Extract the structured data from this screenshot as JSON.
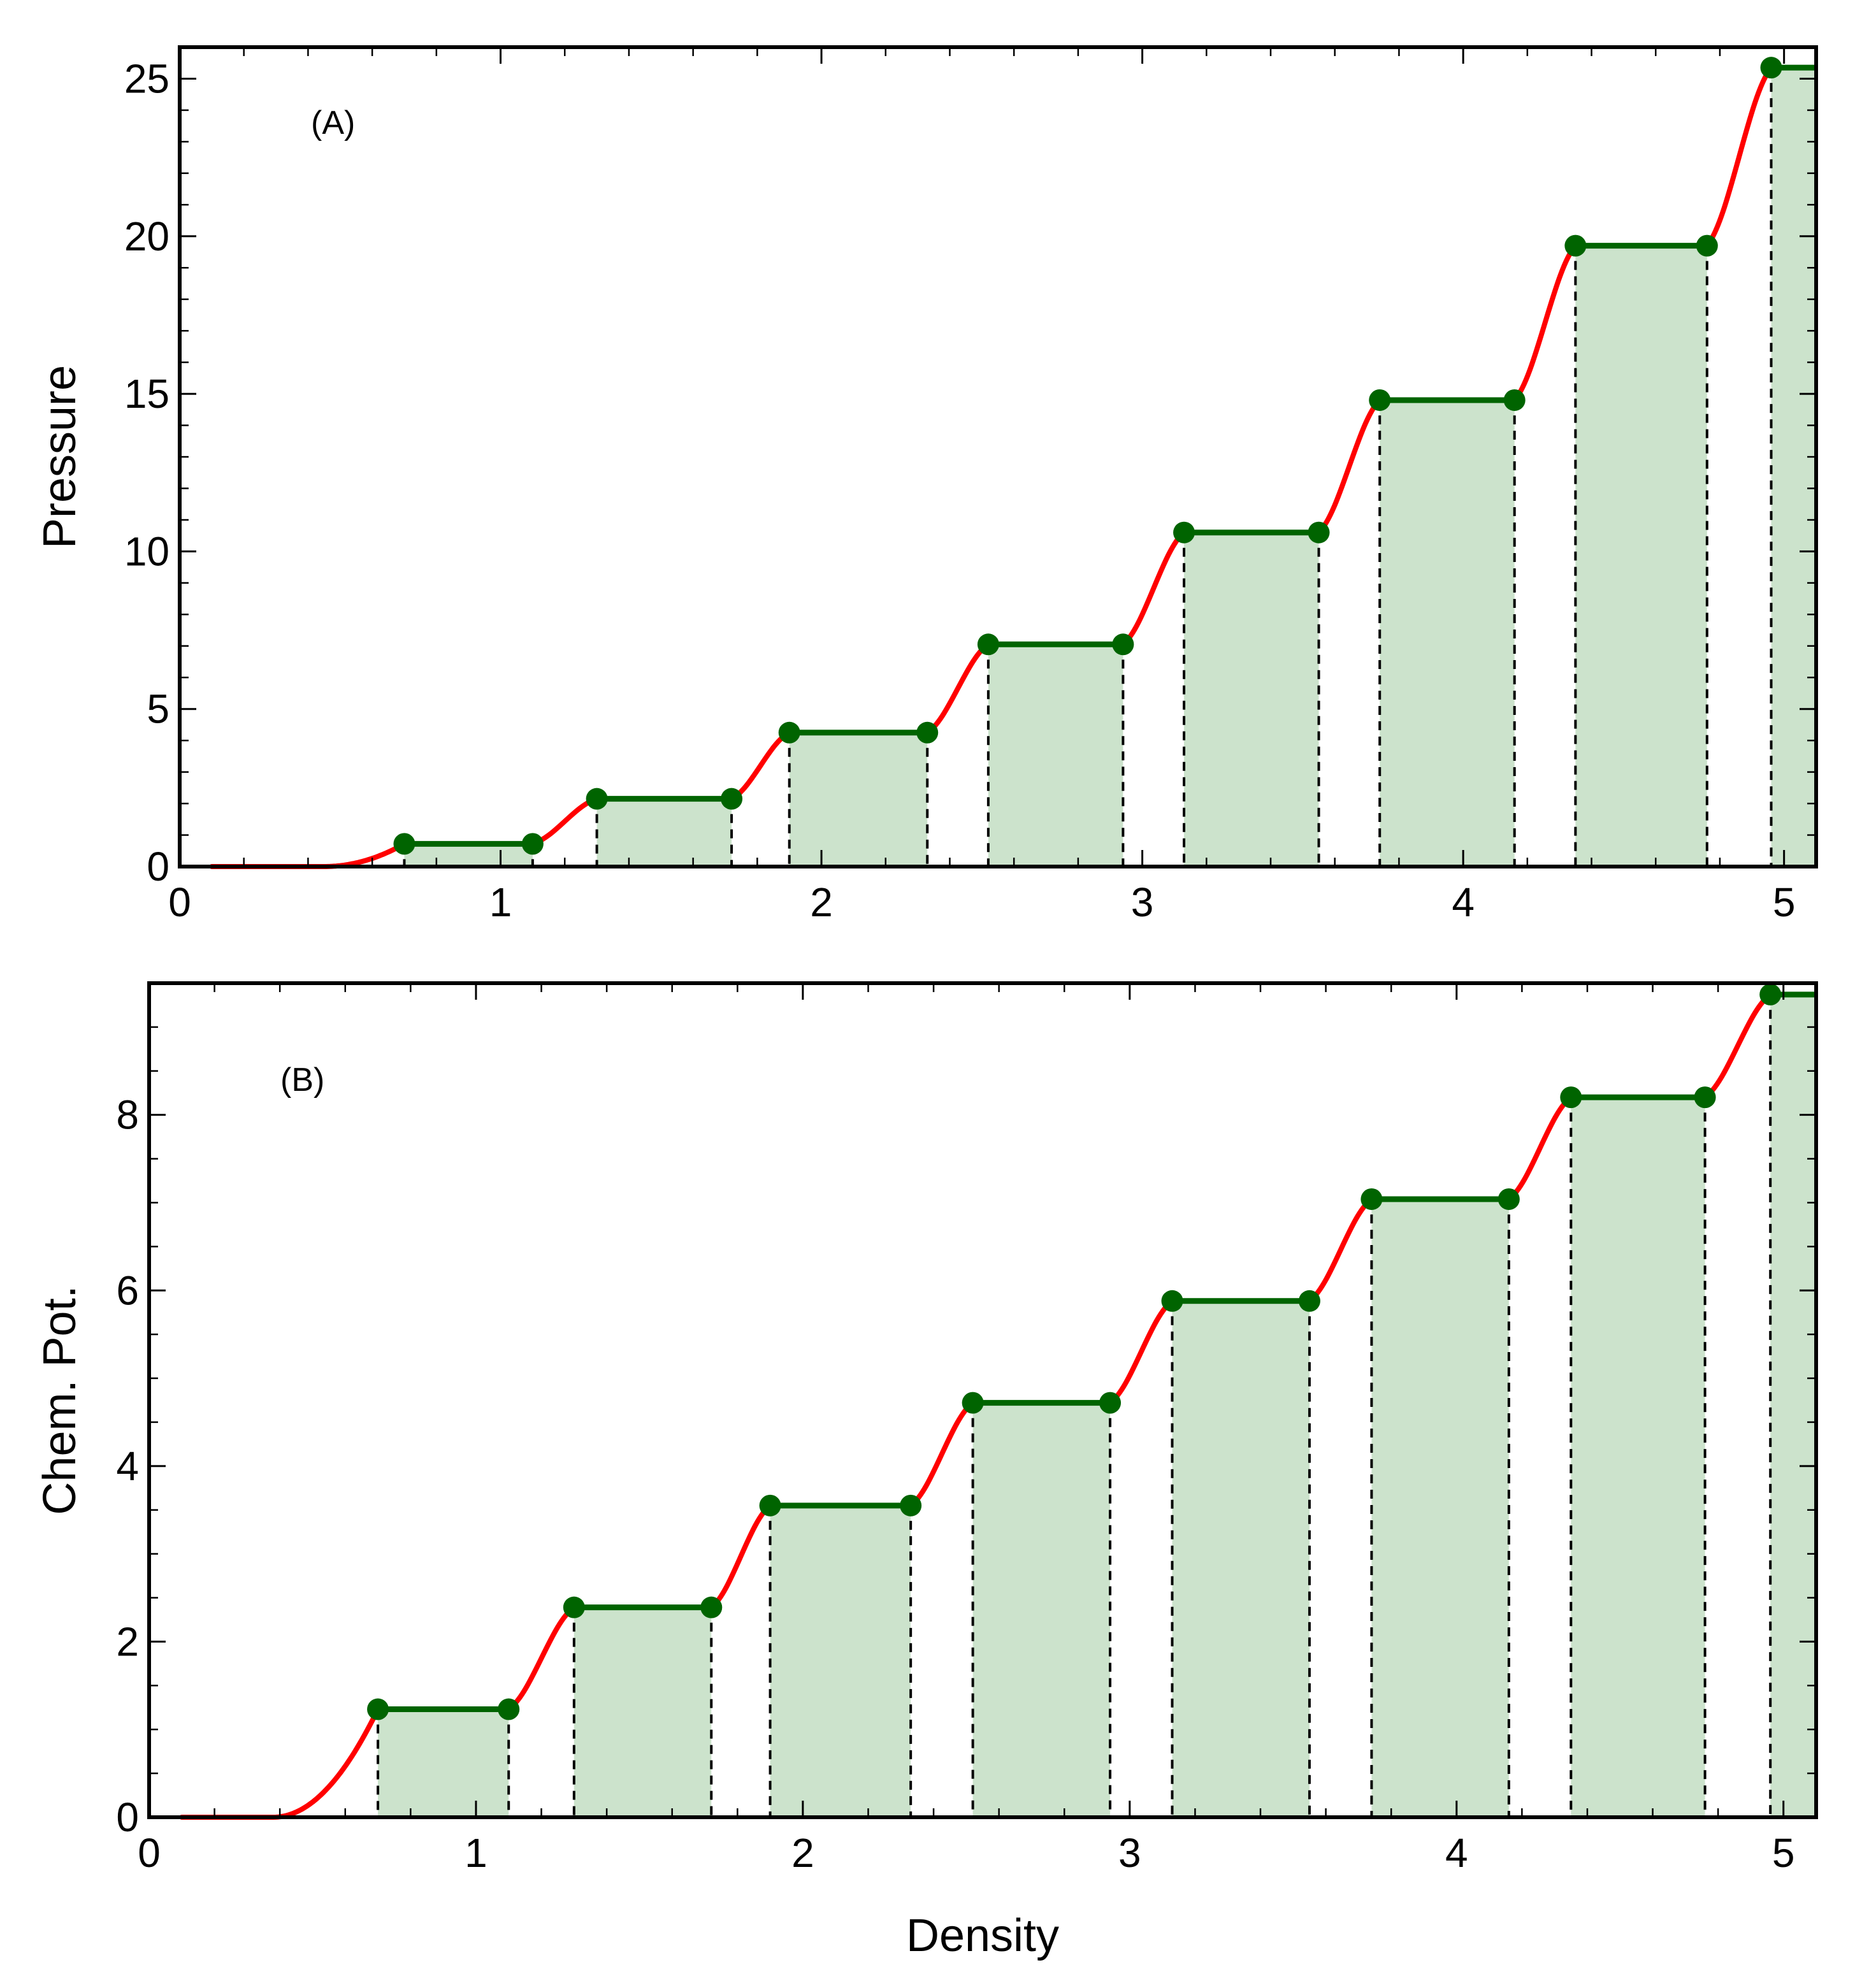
{
  "chart_data": [
    {
      "type": "line",
      "panel": "top",
      "annotation": "(A)",
      "xlabel": "",
      "ylabel": "Pressure",
      "xlim": [
        0,
        5.1
      ],
      "ylim": [
        0,
        26
      ],
      "xticks": [
        0,
        1,
        2,
        3,
        4,
        5
      ],
      "yticks": [
        0,
        5,
        10,
        15,
        20,
        25
      ],
      "x_minor_step": 0.2,
      "y_minor_step": 1,
      "curve_start_x": 0.1,
      "onset_x": 0.45,
      "plateaus": [
        {
          "x_start": 0.7,
          "x_end": 1.1,
          "y": 0.72
        },
        {
          "x_start": 1.3,
          "x_end": 1.72,
          "y": 2.15
        },
        {
          "x_start": 1.9,
          "x_end": 2.33,
          "y": 4.25
        },
        {
          "x_start": 2.52,
          "x_end": 2.94,
          "y": 7.05
        },
        {
          "x_start": 3.13,
          "x_end": 3.55,
          "y": 10.6
        },
        {
          "x_start": 3.74,
          "x_end": 4.16,
          "y": 14.8
        },
        {
          "x_start": 4.35,
          "x_end": 4.76,
          "y": 19.7
        },
        {
          "x_start": 4.96,
          "x_end": 5.1,
          "y": 25.35
        }
      ],
      "colors": {
        "curve": "#ff0000",
        "plateau": "#006400",
        "fill": "#cce3cc"
      }
    },
    {
      "type": "line",
      "panel": "bottom",
      "annotation": "(B)",
      "xlabel": "Density",
      "ylabel": "Chem. Pot.",
      "xlim": [
        0,
        5.1
      ],
      "ylim": [
        0,
        9.5
      ],
      "xticks": [
        0,
        1,
        2,
        3,
        4,
        5
      ],
      "yticks": [
        0,
        2,
        4,
        6,
        8
      ],
      "x_minor_step": 0.2,
      "y_minor_step": 0.5,
      "curve_start_x": 0.1,
      "onset_x": 0.38,
      "plateaus": [
        {
          "x_start": 0.7,
          "x_end": 1.1,
          "y": 1.23
        },
        {
          "x_start": 1.3,
          "x_end": 1.72,
          "y": 2.39
        },
        {
          "x_start": 1.9,
          "x_end": 2.33,
          "y": 3.55
        },
        {
          "x_start": 2.52,
          "x_end": 2.94,
          "y": 4.72
        },
        {
          "x_start": 3.13,
          "x_end": 3.55,
          "y": 5.88
        },
        {
          "x_start": 3.74,
          "x_end": 4.16,
          "y": 7.04
        },
        {
          "x_start": 4.35,
          "x_end": 4.76,
          "y": 8.2
        },
        {
          "x_start": 4.96,
          "x_end": 5.1,
          "y": 9.37
        }
      ],
      "colors": {
        "curve": "#ff0000",
        "plateau": "#006400",
        "fill": "#cce3cc"
      }
    }
  ]
}
